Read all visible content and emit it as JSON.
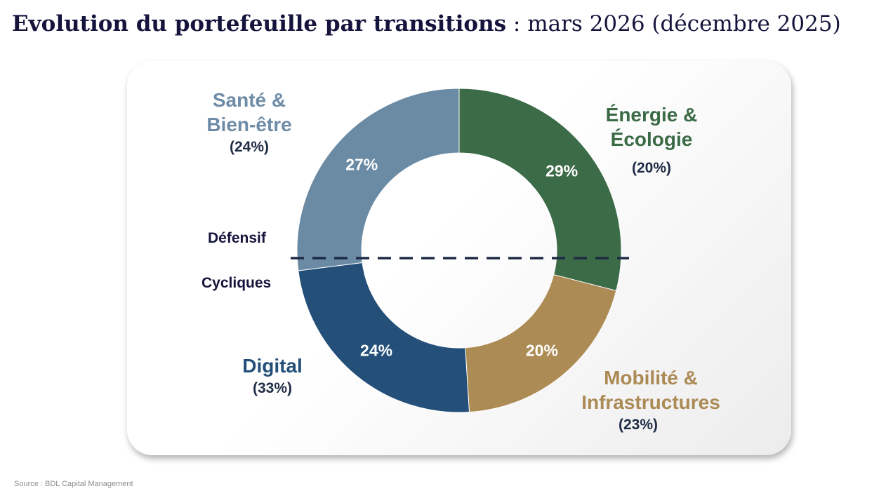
{
  "title": {
    "bold": "Evolution du portefeuille par transitions",
    "rest": " : mars 2026 (décembre 2025)"
  },
  "chart_data": {
    "type": "pie",
    "variant": "donut",
    "title": "Evolution du portefeuille par transitions : mars 2026 (décembre 2025)",
    "slices": [
      {
        "name": "Énergie & Écologie",
        "name_lines": [
          "Énergie &",
          "Écologie"
        ],
        "value": 29,
        "label": "29%",
        "previous": "(20%)",
        "color": "#3c6b47"
      },
      {
        "name": "Mobilité & Infrastructures",
        "name_lines": [
          "Mobilité &",
          "Infrastructures"
        ],
        "value": 20,
        "label": "20%",
        "previous": "(23%)",
        "color": "#ad8b55"
      },
      {
        "name": "Digital",
        "name_lines": [
          "Digital"
        ],
        "value": 24,
        "label": "24%",
        "previous": "(33%)",
        "color": "#234f79"
      },
      {
        "name": "Santé & Bien-être",
        "name_lines": [
          "Santé &",
          "Bien-être"
        ],
        "value": 27,
        "label": "27%",
        "previous": "(24%)",
        "color": "#6b8ba5"
      }
    ],
    "divider": {
      "upper_label": "Défensif",
      "lower_label": "Cycliques",
      "style": "dashed",
      "color": "#1e2b45"
    }
  },
  "source": "Source : BDL Capital Management"
}
